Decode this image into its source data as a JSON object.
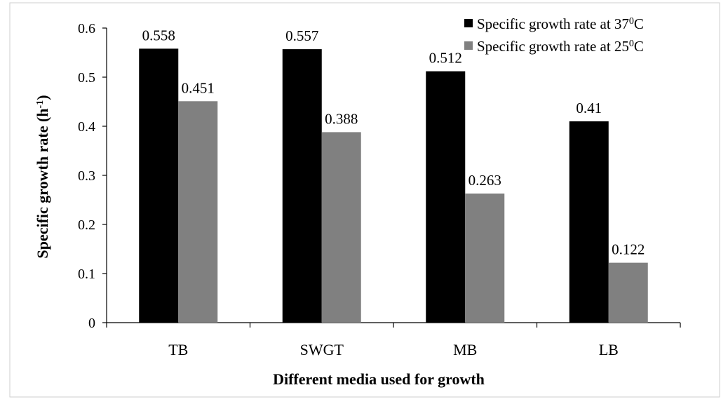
{
  "chart_data": {
    "type": "bar",
    "title": "",
    "xlabel": "Different media used for growth",
    "ylabel_main": "Specific growth rate (h",
    "ylabel_sup": "-1",
    "ylabel_end": ")",
    "categories": [
      "TB",
      "SWGT",
      "MB",
      "LB"
    ],
    "ylim": [
      0,
      0.6
    ],
    "yticks": [
      0,
      0.1,
      0.2,
      0.3,
      0.4,
      0.5,
      0.6
    ],
    "ytick_labels": [
      "0",
      "0.1",
      "0.2",
      "0.3",
      "0.4",
      "0.5",
      "0.6"
    ],
    "grid": false,
    "legend_position": "top-right",
    "series": [
      {
        "name_main": "Specific growth rate at 37",
        "name_sup": "0",
        "name_end": "C",
        "color": "#000000",
        "values": [
          0.558,
          0.557,
          0.512,
          0.41
        ],
        "labels": [
          "0.558",
          "0.557",
          "0.512",
          "0.41"
        ]
      },
      {
        "name_main": "Specific growth rate at 25",
        "name_sup": "0",
        "name_end": "C",
        "color": "#808080",
        "values": [
          0.451,
          0.388,
          0.263,
          0.122
        ],
        "labels": [
          "0.451",
          "0.388",
          "0.263",
          "0.122"
        ]
      }
    ]
  }
}
